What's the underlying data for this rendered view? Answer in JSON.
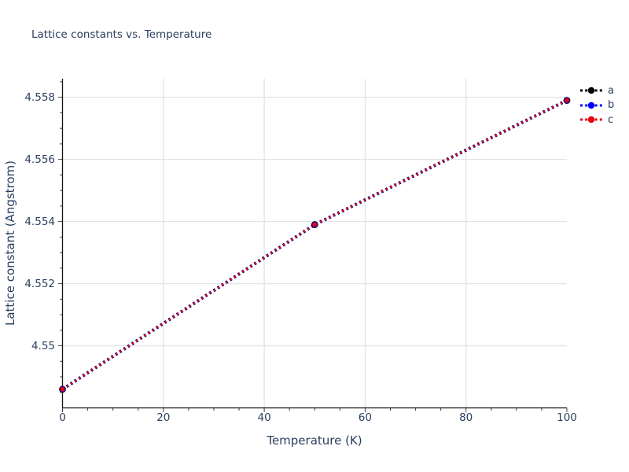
{
  "title": "Lattice constants vs. Temperature",
  "colors": {
    "text": "#2a3f5f",
    "grid": "#e3e3e3",
    "axis_line": "#111111",
    "tick": "#444444",
    "background": "#ffffff",
    "series_a": "#000000",
    "series_b": "#0000ff",
    "series_c": "#e8000b"
  },
  "legend": {
    "items": [
      {
        "label": "a",
        "color": "#000000"
      },
      {
        "label": "b",
        "color": "#0000ff"
      },
      {
        "label": "c",
        "color": "#e8000b"
      }
    ]
  },
  "chart_data": {
    "type": "line",
    "title": "Lattice constants vs. Temperature",
    "xlabel": "Temperature (K)",
    "ylabel": "Lattice constant (Angstrom)",
    "x": [
      0,
      50,
      100
    ],
    "series": [
      {
        "name": "a",
        "color": "#000000",
        "values": [
          4.5486,
          4.5539,
          4.5579
        ]
      },
      {
        "name": "b",
        "color": "#0000ff",
        "values": [
          4.5486,
          4.5539,
          4.5579
        ]
      },
      {
        "name": "c",
        "color": "#e8000b",
        "values": [
          4.5486,
          4.5539,
          4.5579
        ]
      }
    ],
    "line_style": "dotted",
    "marker": "circle",
    "grid": true,
    "legend_position": "top-right-outside",
    "xlim": [
      0,
      100
    ],
    "ylim": [
      4.548,
      4.5586
    ],
    "xticks": {
      "major": [
        0,
        20,
        40,
        60,
        80,
        100
      ],
      "labels": [
        "0",
        "20",
        "40",
        "60",
        "80",
        "100"
      ],
      "minor_step": 5
    },
    "yticks": {
      "major": [
        4.55,
        4.552,
        4.554,
        4.556,
        4.558
      ],
      "labels": [
        "4.55",
        "4.552",
        "4.554",
        "4.556",
        "4.558"
      ],
      "minor_step": 0.0005,
      "major_step": 0.002
    }
  }
}
